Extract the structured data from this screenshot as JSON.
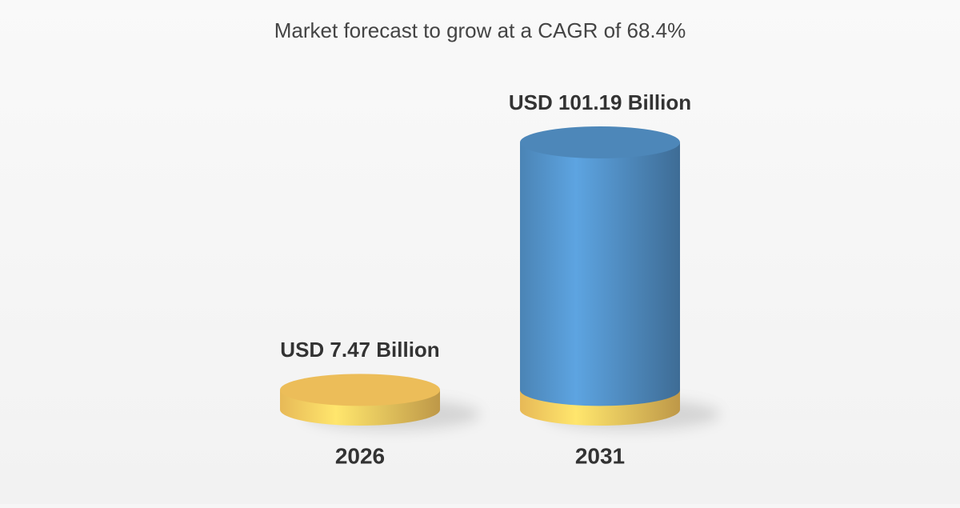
{
  "chart_data": {
    "type": "cylinder",
    "subtitle": "Market forecast to grow at a CAGR of 68.4%",
    "categories": [
      "2026",
      "2031"
    ],
    "values": [
      7.47,
      101.19
    ],
    "value_labels": [
      "USD 7.47 Billion",
      "USD 101.19 Billion"
    ],
    "colors": [
      "#f3c35c",
      "#4f8bbf"
    ]
  }
}
